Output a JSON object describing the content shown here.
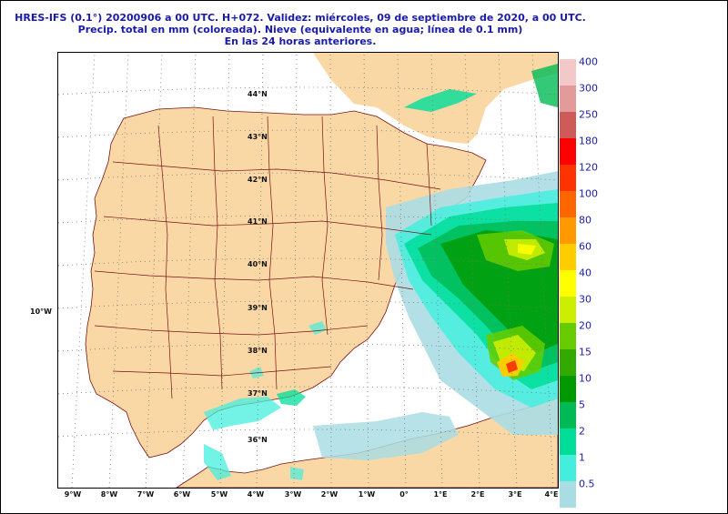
{
  "header": {
    "line1": "HRES-IFS (0.1°) 20200906 a 00 UTC.  H+072. Validez: miércoles, 09 de septiembre de 2020,  a  00 UTC.",
    "line2": "Precip. total en mm (coloreada). Nieve (equivalente en agua; línea de 0.1 mm)",
    "line3": "En las 24 horas anteriores."
  },
  "map": {
    "lat_labels": [
      "44°N",
      "43°N",
      "42°N",
      "41°N",
      "40°N",
      "39°N",
      "38°N",
      "37°N",
      "36°N"
    ],
    "lon_labels": [
      "9°W",
      "8°W",
      "7°W",
      "6°W",
      "5°W",
      "4°W",
      "3°W",
      "2°W",
      "1°W",
      "0°",
      "1°E",
      "2°E",
      "3°E",
      "4°E"
    ],
    "side_label": "10°W",
    "colors": {
      "land": "#f9d8a6",
      "sea": "#ffffff",
      "border": "#7a1010",
      "grid": "#777777"
    }
  },
  "legend": {
    "items": [
      {
        "label": "400",
        "color": "#f2c8c8"
      },
      {
        "label": "300",
        "color": "#e39a9a"
      },
      {
        "label": "250",
        "color": "#cf5a5a"
      },
      {
        "label": "180",
        "color": "#ff0000"
      },
      {
        "label": "120",
        "color": "#ff3300"
      },
      {
        "label": "100",
        "color": "#ff6600"
      },
      {
        "label": "80",
        "color": "#ff9900"
      },
      {
        "label": "60",
        "color": "#ffcc00"
      },
      {
        "label": "40",
        "color": "#ffff00"
      },
      {
        "label": "30",
        "color": "#ccee00"
      },
      {
        "label": "20",
        "color": "#66cc00"
      },
      {
        "label": "15",
        "color": "#33aa00"
      },
      {
        "label": "10",
        "color": "#009900"
      },
      {
        "label": "5",
        "color": "#00bb55"
      },
      {
        "label": "2",
        "color": "#00dd99"
      },
      {
        "label": "1",
        "color": "#44eedd"
      },
      {
        "label": "0.5",
        "color": "#aadde3"
      }
    ]
  }
}
